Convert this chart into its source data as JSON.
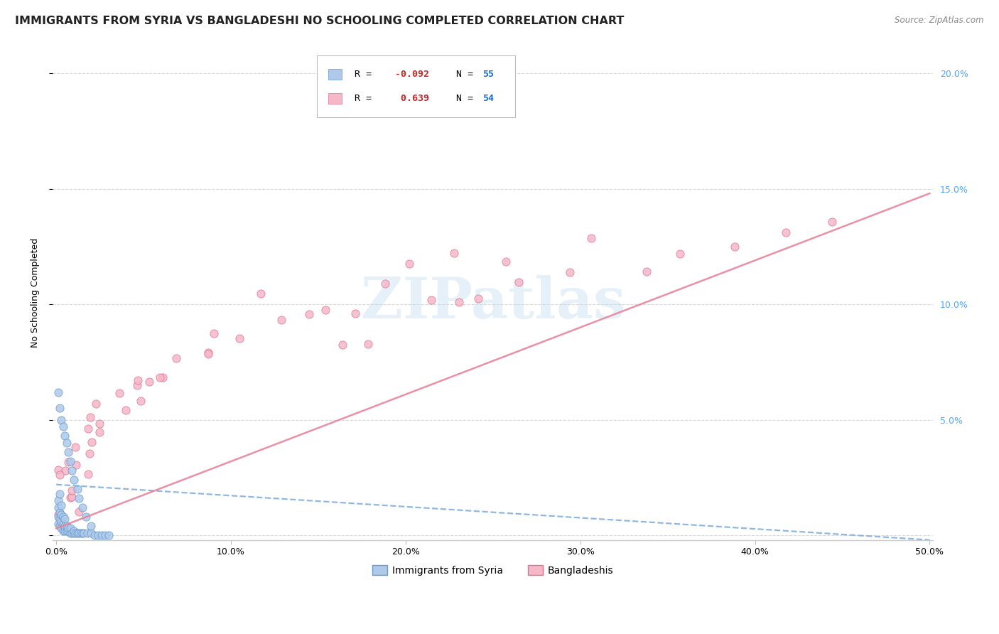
{
  "title": "IMMIGRANTS FROM SYRIA VS BANGLADESHI NO SCHOOLING COMPLETED CORRELATION CHART",
  "source": "Source: ZipAtlas.com",
  "ylabel": "No Schooling Completed",
  "watermark": "ZIPatlas",
  "xlim": [
    -0.002,
    0.502
  ],
  "ylim": [
    -0.002,
    0.212
  ],
  "xticks": [
    0.0,
    0.1,
    0.2,
    0.3,
    0.4,
    0.5
  ],
  "yticks": [
    0.0,
    0.05,
    0.1,
    0.15,
    0.2
  ],
  "xtick_labels": [
    "0.0%",
    "",
    "",
    "",
    "",
    "50.0%"
  ],
  "ytick_labels_right": [
    "",
    "5.0%",
    "10.0%",
    "15.0%",
    "20.0%"
  ],
  "syria_color": "#aec9ea",
  "syria_edge": "#6699cc",
  "bangla_color": "#f5b8c8",
  "bangla_edge": "#e07090",
  "syria_R": -0.092,
  "syria_N": 55,
  "bangla_R": 0.639,
  "bangla_N": 54,
  "syria_line_color": "#7aabdc",
  "bangla_line_color": "#e8849a",
  "background_color": "#ffffff",
  "grid_color": "#d8d8d8",
  "title_fontsize": 11.5,
  "axis_fontsize": 9,
  "tick_fontsize": 9,
  "right_tick_color": "#4da6ff",
  "source_color": "#888888",
  "legend_R_color_syria": "#e05050",
  "legend_R_color_bangla": "#e05050",
  "legend_N_color": "#1a6bcc",
  "bangla_line_y0": 0.003,
  "bangla_line_y1": 0.148,
  "syria_line_y0": 0.022,
  "syria_line_y1": -0.002
}
